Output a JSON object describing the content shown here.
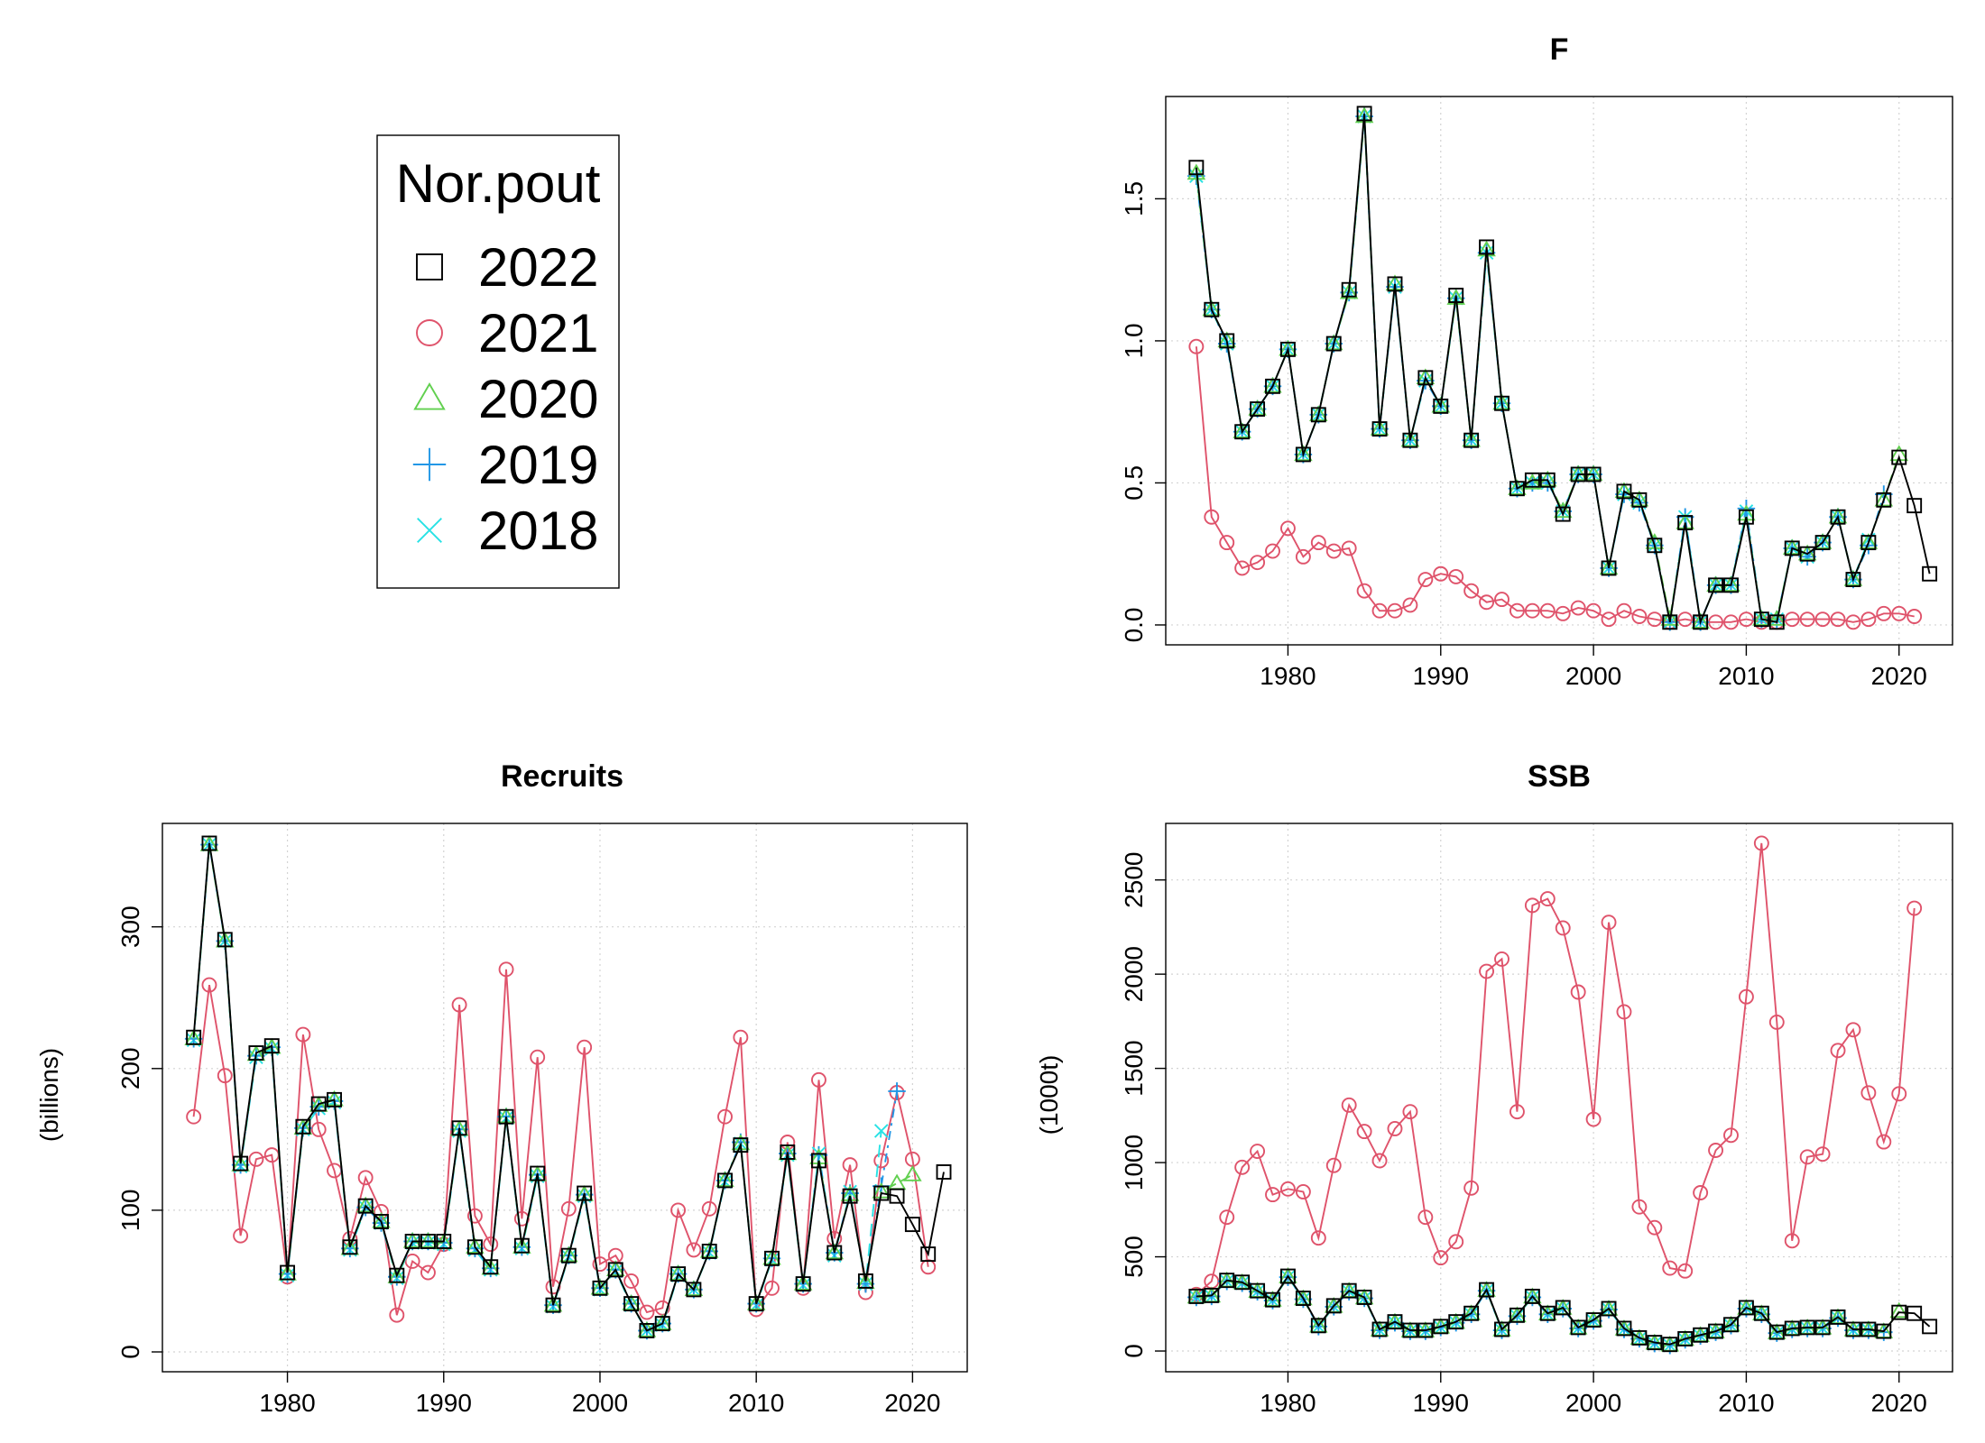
{
  "legend": {
    "title": "Nor.pout",
    "entries": [
      {
        "label": "2022",
        "color": "#000000",
        "marker": "square-icon"
      },
      {
        "label": "2021",
        "color": "#DF536B",
        "marker": "circle-icon"
      },
      {
        "label": "2020",
        "color": "#61D04F",
        "marker": "triangle-icon"
      },
      {
        "label": "2019",
        "color": "#2297E6",
        "marker": "plus-icon"
      },
      {
        "label": "2018",
        "color": "#28E2E5",
        "marker": "cross-icon"
      }
    ]
  },
  "chart_data": [
    {
      "id": "f",
      "type": "line",
      "title": "F",
      "xlabel": "",
      "ylabel": "",
      "xlim": [
        1972,
        2023.5
      ],
      "ylim": [
        -0.07,
        1.86
      ],
      "xticks": [
        1980,
        1990,
        2000,
        2010,
        2020
      ],
      "yticks": [
        0.0,
        0.5,
        1.0,
        1.5
      ],
      "ytick_labels": [
        "0.0",
        "0.5",
        "1.0",
        "1.5"
      ],
      "grid": true,
      "series": [
        {
          "name": "2018",
          "marker": "cross",
          "color": "#28E2E5",
          "x_start": 1974,
          "values": [
            1.58,
            1.11,
            0.99,
            0.68,
            0.76,
            0.84,
            0.97,
            0.6,
            0.74,
            0.99,
            1.17,
            1.79,
            0.69,
            1.19,
            0.65,
            0.86,
            0.77,
            1.15,
            0.65,
            1.31,
            0.78,
            0.48,
            0.5,
            0.5,
            0.4,
            0.53,
            0.53,
            0.2,
            0.46,
            0.43,
            0.28,
            0.01,
            0.38,
            0.01,
            0.14,
            0.14,
            0.4,
            0.02,
            0.02,
            0.27,
            0.24,
            0.29,
            0.38,
            0.16,
            0.3
          ]
        },
        {
          "name": "2019",
          "marker": "plus",
          "color": "#2297E6",
          "x_start": 1974,
          "values": [
            1.58,
            1.11,
            0.99,
            0.68,
            0.76,
            0.84,
            0.97,
            0.6,
            0.74,
            0.99,
            1.17,
            1.79,
            0.69,
            1.19,
            0.65,
            0.86,
            0.77,
            1.15,
            0.65,
            1.31,
            0.78,
            0.48,
            0.5,
            0.5,
            0.4,
            0.53,
            0.53,
            0.2,
            0.46,
            0.43,
            0.28,
            0.01,
            0.38,
            0.01,
            0.14,
            0.14,
            0.41,
            0.02,
            0.02,
            0.27,
            0.24,
            0.29,
            0.38,
            0.16,
            0.28,
            0.46
          ]
        },
        {
          "name": "2020",
          "marker": "triangle",
          "color": "#61D04F",
          "x_start": 1974,
          "values": [
            1.59,
            1.11,
            1.0,
            0.68,
            0.76,
            0.84,
            0.97,
            0.6,
            0.74,
            0.99,
            1.17,
            1.79,
            0.69,
            1.2,
            0.65,
            0.87,
            0.77,
            1.15,
            0.65,
            1.32,
            0.78,
            0.48,
            0.5,
            0.51,
            0.4,
            0.53,
            0.53,
            0.2,
            0.47,
            0.44,
            0.29,
            0.02,
            0.36,
            0.01,
            0.14,
            0.14,
            0.39,
            0.02,
            0.02,
            0.27,
            0.25,
            0.29,
            0.38,
            0.16,
            0.29,
            0.44,
            0.6
          ]
        },
        {
          "name": "2021",
          "marker": "circle",
          "color": "#DF536B",
          "x_start": 1974,
          "values": [
            0.98,
            0.38,
            0.29,
            0.2,
            0.22,
            0.26,
            0.34,
            0.24,
            0.29,
            0.26,
            0.27,
            0.12,
            0.05,
            0.05,
            0.07,
            0.16,
            0.18,
            0.17,
            0.12,
            0.08,
            0.09,
            0.05,
            0.05,
            0.05,
            0.04,
            0.06,
            0.05,
            0.02,
            0.05,
            0.03,
            0.02,
            0.01,
            0.02,
            0.01,
            0.01,
            0.01,
            0.02,
            0.01,
            0.01,
            0.02,
            0.02,
            0.02,
            0.02,
            0.01,
            0.02,
            0.04,
            0.04,
            0.03
          ]
        },
        {
          "name": "2022",
          "marker": "square",
          "color": "#000000",
          "x_start": 1974,
          "values": [
            1.61,
            1.11,
            1.0,
            0.68,
            0.76,
            0.84,
            0.97,
            0.6,
            0.74,
            0.99,
            1.18,
            1.8,
            0.69,
            1.2,
            0.65,
            0.87,
            0.77,
            1.16,
            0.65,
            1.33,
            0.78,
            0.48,
            0.51,
            0.51,
            0.39,
            0.53,
            0.53,
            0.2,
            0.47,
            0.44,
            0.28,
            0.01,
            0.36,
            0.01,
            0.14,
            0.14,
            0.38,
            0.02,
            0.01,
            0.27,
            0.25,
            0.29,
            0.38,
            0.16,
            0.29,
            0.44,
            0.59,
            0.42,
            0.18
          ]
        }
      ]
    },
    {
      "id": "recruits",
      "type": "line",
      "title": "Recruits",
      "xlabel": "",
      "ylabel": "(billions)",
      "xlim": [
        1972,
        2023.5
      ],
      "ylim": [
        -14,
        373
      ],
      "xticks": [
        1980,
        1990,
        2000,
        2010,
        2020
      ],
      "yticks": [
        0,
        100,
        200,
        300
      ],
      "ytick_labels": [
        "0",
        "100",
        "200",
        "300"
      ],
      "grid": true,
      "series": [
        {
          "name": "2018",
          "marker": "cross",
          "color": "#28E2E5",
          "x_start": 1974,
          "values": [
            220,
            358,
            290,
            131,
            208,
            214,
            54,
            157,
            172,
            176,
            72,
            102,
            91,
            52,
            77,
            77,
            76,
            156,
            72,
            58,
            165,
            73,
            124,
            32,
            67,
            110,
            44,
            57,
            33,
            15,
            19,
            54,
            44,
            70,
            120,
            147,
            33,
            65,
            139,
            47,
            140,
            68,
            113,
            48,
            156
          ]
        },
        {
          "name": "2019",
          "marker": "plus",
          "color": "#2297E6",
          "x_start": 1974,
          "values": [
            221,
            358,
            290,
            132,
            209,
            215,
            55,
            158,
            173,
            177,
            73,
            102,
            91,
            53,
            78,
            78,
            77,
            157,
            73,
            59,
            166,
            74,
            125,
            33,
            68,
            111,
            45,
            58,
            34,
            15,
            20,
            55,
            44,
            71,
            121,
            148,
            34,
            66,
            140,
            48,
            139,
            70,
            112,
            48,
            117,
            184
          ]
        },
        {
          "name": "2020",
          "marker": "triangle",
          "color": "#61D04F",
          "x_start": 1974,
          "values": [
            221,
            358,
            290,
            132,
            210,
            215,
            55,
            158,
            174,
            178,
            73,
            103,
            92,
            53,
            78,
            78,
            77,
            157,
            74,
            59,
            166,
            74,
            125,
            33,
            68,
            111,
            45,
            58,
            34,
            15,
            20,
            55,
            44,
            71,
            121,
            147,
            34,
            66,
            140,
            48,
            137,
            70,
            111,
            49,
            113,
            119,
            125
          ]
        },
        {
          "name": "2021",
          "marker": "circle",
          "color": "#DF536B",
          "x_start": 1974,
          "values": [
            166,
            259,
            195,
            82,
            136,
            139,
            53,
            224,
            157,
            128,
            80,
            123,
            99,
            26,
            64,
            56,
            76,
            245,
            96,
            76,
            270,
            94,
            208,
            46,
            101,
            215,
            62,
            68,
            50,
            28,
            31,
            100,
            72,
            101,
            166,
            222,
            30,
            45,
            148,
            45,
            192,
            80,
            132,
            42,
            135,
            183,
            136,
            60
          ]
        },
        {
          "name": "2022",
          "marker": "square",
          "color": "#000000",
          "x_start": 1974,
          "values": [
            222,
            359,
            291,
            133,
            211,
            216,
            56,
            159,
            175,
            178,
            74,
            103,
            92,
            54,
            78,
            78,
            78,
            158,
            74,
            60,
            166,
            75,
            126,
            33,
            68,
            112,
            45,
            58,
            34,
            15,
            20,
            55,
            44,
            71,
            121,
            146,
            34,
            66,
            141,
            48,
            135,
            70,
            110,
            50,
            112,
            110,
            90,
            69,
            127
          ]
        }
      ]
    },
    {
      "id": "ssb",
      "type": "line",
      "title": "SSB",
      "xlabel": "",
      "ylabel": "(1000t)",
      "xlim": [
        1972,
        2023.5
      ],
      "ylim": [
        -110,
        2800
      ],
      "xticks": [
        1980,
        1990,
        2000,
        2010,
        2020
      ],
      "yticks": [
        0,
        500,
        1000,
        1500,
        2000,
        2500
      ],
      "ytick_labels": [
        "0",
        "500",
        "1000",
        "1500",
        "2000",
        "2500"
      ],
      "grid": true,
      "series": [
        {
          "name": "2018",
          "marker": "cross",
          "color": "#28E2E5",
          "x_start": 1974,
          "values": [
            285,
            290,
            370,
            360,
            315,
            268,
            392,
            275,
            130,
            235,
            315,
            280,
            110,
            150,
            105,
            105,
            125,
            150,
            195,
            320,
            110,
            185,
            285,
            195,
            225,
            120,
            160,
            220,
            115,
            65,
            40,
            30,
            60,
            80,
            100,
            135,
            225,
            195,
            95,
            115,
            120,
            120,
            175,
            110,
            110
          ]
        },
        {
          "name": "2019",
          "marker": "plus",
          "color": "#2297E6",
          "x_start": 1974,
          "values": [
            285,
            290,
            370,
            360,
            315,
            268,
            392,
            275,
            130,
            235,
            315,
            280,
            110,
            150,
            105,
            105,
            125,
            150,
            195,
            320,
            110,
            185,
            285,
            195,
            225,
            120,
            160,
            220,
            115,
            65,
            40,
            30,
            60,
            80,
            100,
            135,
            225,
            195,
            95,
            115,
            120,
            120,
            175,
            110,
            110,
            100
          ]
        },
        {
          "name": "2020",
          "marker": "triangle",
          "color": "#61D04F",
          "x_start": 1974,
          "values": [
            287,
            292,
            372,
            362,
            317,
            270,
            394,
            277,
            132,
            237,
            317,
            282,
            112,
            152,
            107,
            107,
            127,
            152,
            197,
            322,
            112,
            187,
            287,
            197,
            227,
            122,
            162,
            222,
            117,
            67,
            42,
            32,
            62,
            82,
            102,
            137,
            227,
            197,
            97,
            117,
            122,
            122,
            177,
            112,
            112,
            102,
            210
          ]
        },
        {
          "name": "2021",
          "marker": "circle",
          "color": "#DF536B",
          "x_start": 1974,
          "values": [
            300,
            370,
            710,
            975,
            1060,
            830,
            860,
            845,
            600,
            985,
            1305,
            1165,
            1010,
            1180,
            1270,
            710,
            495,
            580,
            865,
            2015,
            2080,
            1270,
            2365,
            2400,
            2245,
            1905,
            1230,
            2275,
            1800,
            765,
            655,
            440,
            425,
            840,
            1065,
            1145,
            1880,
            2695,
            1745,
            585,
            1030,
            1045,
            1595,
            1705,
            1370,
            1110,
            1365,
            2350
          ]
        },
        {
          "name": "2022",
          "marker": "square",
          "color": "#000000",
          "x_start": 1974,
          "values": [
            290,
            295,
            375,
            365,
            320,
            272,
            397,
            280,
            135,
            240,
            320,
            285,
            115,
            155,
            110,
            110,
            130,
            155,
            200,
            325,
            115,
            190,
            290,
            200,
            230,
            125,
            165,
            225,
            120,
            70,
            45,
            35,
            65,
            85,
            105,
            140,
            230,
            200,
            100,
            120,
            125,
            125,
            180,
            115,
            115,
            105,
            205,
            200,
            130
          ]
        }
      ]
    }
  ]
}
